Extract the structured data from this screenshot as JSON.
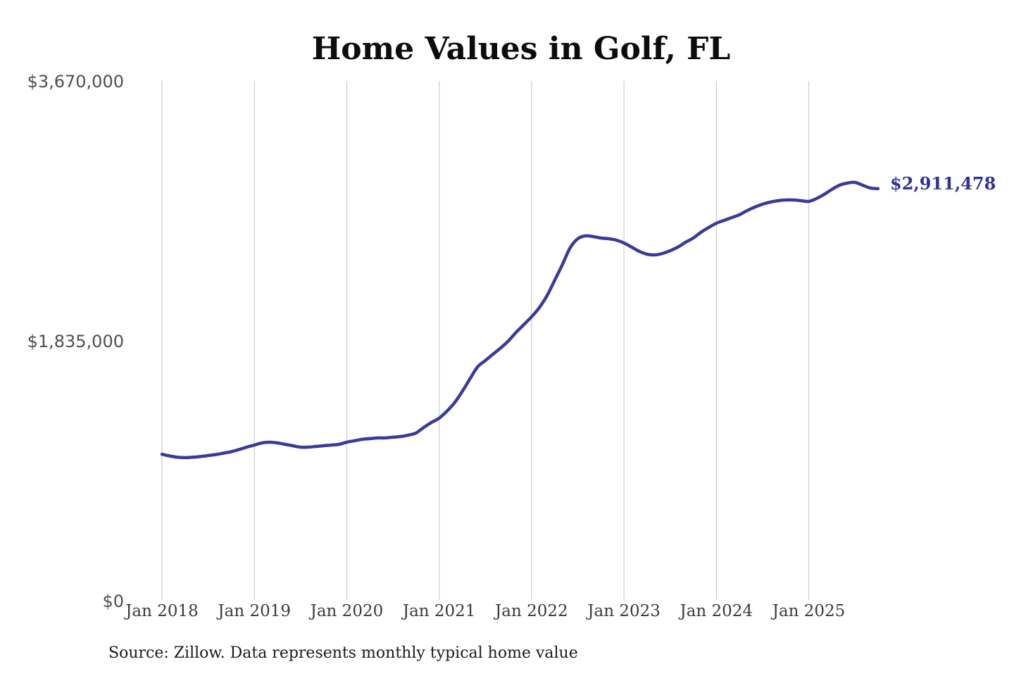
{
  "title": "Home Values in Golf, FL",
  "source_note": "Source: Zillow. Data represents monthly typical home value",
  "end_label": "$2,911,478",
  "colors": {
    "line": "#3a3a99",
    "grid": "#cccccc",
    "title": "#0c0c0c",
    "y_label": "#4f4f4f",
    "x_label": "#3b3b3b",
    "end_label": "#32329a",
    "source": "#1a1a1a",
    "background": "#ffffff"
  },
  "y_axis": {
    "ticks": [
      {
        "label": "$3,670,000",
        "value": 3670000
      },
      {
        "label": "$1,835,000",
        "value": 1835000
      },
      {
        "label": "$0",
        "value": 0
      }
    ]
  },
  "x_axis": {
    "ticks": [
      "Jan 2018",
      "Jan 2019",
      "Jan 2020",
      "Jan 2021",
      "Jan 2022",
      "Jan 2023",
      "Jan 2024",
      "Jan 2025"
    ]
  },
  "chart_data": {
    "type": "line",
    "title": "Home Values in Golf, FL",
    "xlabel": "",
    "ylabel": "",
    "ylim": [
      0,
      3670000
    ],
    "grid": "vertical-only",
    "legend": "none",
    "latest_value": 2911478,
    "latest_value_label": "$2,911,478",
    "series": [
      {
        "name": "Typical home value",
        "x": [
          "2018-01",
          "2018-02",
          "2018-03",
          "2018-04",
          "2018-05",
          "2018-06",
          "2018-07",
          "2018-08",
          "2018-09",
          "2018-10",
          "2018-11",
          "2018-12",
          "2019-01",
          "2019-02",
          "2019-03",
          "2019-04",
          "2019-05",
          "2019-06",
          "2019-07",
          "2019-08",
          "2019-09",
          "2019-10",
          "2019-11",
          "2019-12",
          "2020-01",
          "2020-02",
          "2020-03",
          "2020-04",
          "2020-05",
          "2020-06",
          "2020-07",
          "2020-08",
          "2020-09",
          "2020-10",
          "2020-11",
          "2020-12",
          "2021-01",
          "2021-02",
          "2021-03",
          "2021-04",
          "2021-05",
          "2021-06",
          "2021-07",
          "2021-08",
          "2021-09",
          "2021-10",
          "2021-11",
          "2021-12",
          "2022-01",
          "2022-02",
          "2022-03",
          "2022-04",
          "2022-05",
          "2022-06",
          "2022-07",
          "2022-08",
          "2022-09",
          "2022-10",
          "2022-11",
          "2022-12",
          "2023-01",
          "2023-02",
          "2023-03",
          "2023-04",
          "2023-05",
          "2023-06",
          "2023-07",
          "2023-08",
          "2023-09",
          "2023-10",
          "2023-11",
          "2023-12",
          "2024-01",
          "2024-02",
          "2024-03",
          "2024-04",
          "2024-05",
          "2024-06",
          "2024-07",
          "2024-08",
          "2024-09",
          "2024-10",
          "2024-11",
          "2024-12",
          "2025-01",
          "2025-02",
          "2025-03",
          "2025-04",
          "2025-05",
          "2025-06",
          "2025-07",
          "2025-08",
          "2025-09",
          "2025-10"
        ],
        "values": [
          1041000,
          1029000,
          1020000,
          1017000,
          1020000,
          1025000,
          1032000,
          1039000,
          1049000,
          1059000,
          1074000,
          1091000,
          1106000,
          1121000,
          1126000,
          1121000,
          1111000,
          1101000,
          1091000,
          1091000,
          1096000,
          1101000,
          1106000,
          1111000,
          1126000,
          1136000,
          1146000,
          1151000,
          1156000,
          1156000,
          1161000,
          1166000,
          1176000,
          1191000,
          1230000,
          1265000,
          1295000,
          1344000,
          1404000,
          1483000,
          1572000,
          1657000,
          1701000,
          1746000,
          1790000,
          1840000,
          1900000,
          1954000,
          2009000,
          2073000,
          2157000,
          2266000,
          2376000,
          2494000,
          2559000,
          2579000,
          2574000,
          2564000,
          2559000,
          2549000,
          2529000,
          2500000,
          2470000,
          2450000,
          2445000,
          2455000,
          2475000,
          2500000,
          2534000,
          2564000,
          2604000,
          2638000,
          2668000,
          2688000,
          2708000,
          2728000,
          2757000,
          2782000,
          2802000,
          2817000,
          2827000,
          2832000,
          2832000,
          2827000,
          2822000,
          2842000,
          2871000,
          2906000,
          2936000,
          2951000,
          2956000,
          2936000,
          2916000,
          2911478
        ]
      }
    ]
  }
}
